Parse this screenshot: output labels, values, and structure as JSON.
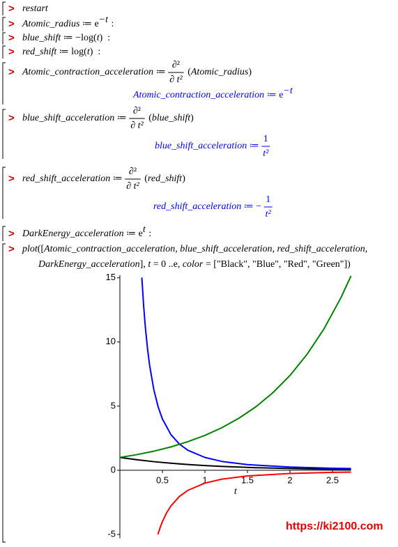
{
  "worksheet": {
    "lines": [
      {
        "prompt": ">",
        "segments": [
          {
            "text": "restart",
            "style": "italic"
          }
        ]
      },
      {
        "prompt": ">",
        "segments": [
          {
            "text": "Atomic_radius",
            "style": "italic"
          },
          {
            "text": " ≔ e"
          },
          {
            "text": "−t",
            "style": "sup"
          },
          {
            "text": " :"
          }
        ]
      },
      {
        "prompt": ">",
        "segments": [
          {
            "text": "blue_shift",
            "style": "italic"
          },
          {
            "text": " ≔ −log("
          },
          {
            "text": "t",
            "style": "italic"
          },
          {
            "text": ")  :"
          }
        ]
      },
      {
        "prompt": ">",
        "segments": [
          {
            "text": "red_shift",
            "style": "italic"
          },
          {
            "text": " ≔ log("
          },
          {
            "text": "t",
            "style": "italic"
          },
          {
            "text": ")  :"
          }
        ]
      },
      {
        "prompt": ">",
        "segments": [
          {
            "text": "Atomic_contraction_acceleration",
            "style": "italic"
          },
          {
            "text": " ≔ "
          },
          {
            "num": "∂²",
            "den": "∂ t²"
          },
          {
            "text": " ("
          },
          {
            "text": "Atomic_radius",
            "style": "italic"
          },
          {
            "text": ")"
          }
        ]
      },
      {
        "color": "#0000ff",
        "segments": [
          {
            "text": "Atomic_contraction_acceleration",
            "style": "italic"
          },
          {
            "text": " ≔ e"
          },
          {
            "text": "−t",
            "style": "sup"
          }
        ]
      },
      {
        "prompt": ">",
        "segments": [
          {
            "text": "blue_shift_acceleration",
            "style": "italic"
          },
          {
            "text": " ≔ "
          },
          {
            "num": "∂²",
            "den": "∂ t²"
          },
          {
            "text": " ("
          },
          {
            "text": "blue_shift",
            "style": "italic"
          },
          {
            "text": ")"
          }
        ]
      },
      {
        "color": "#0000ff",
        "segments": [
          {
            "text": "blue_shift_acceleration",
            "style": "italic"
          },
          {
            "text": " ≔ "
          },
          {
            "num": "1",
            "den": "t²"
          }
        ]
      },
      {
        "prompt": ">",
        "segments": [
          {
            "text": "red_shift_acceleration",
            "style": "italic"
          },
          {
            "text": " ≔ "
          },
          {
            "num": "∂²",
            "den": "∂ t²"
          },
          {
            "text": " ("
          },
          {
            "text": "red_shift",
            "style": "italic"
          },
          {
            "text": ")"
          }
        ]
      },
      {
        "color": "#0000ff",
        "segments": [
          {
            "text": "red_shift_acceleration",
            "style": "italic"
          },
          {
            "text": " ≔ − "
          },
          {
            "num": "1",
            "den": "t²"
          }
        ]
      },
      {
        "prompt": ">",
        "segments": [
          {
            "text": "DarkEnergy_acceleration",
            "style": "italic"
          },
          {
            "text": " ≔ e"
          },
          {
            "text": "t",
            "style": "sup"
          },
          {
            "text": " :"
          }
        ]
      },
      {
        "prompt": ">",
        "segments": [
          {
            "text": "plot",
            "style": "italic"
          },
          {
            "text": "(["
          },
          {
            "text": "Atomic_contraction_acceleration, blue_shift_acceleration, red_shift_acceleration,",
            "style": "italic"
          }
        ]
      },
      {
        "segments": [
          {
            "text": "DarkEnergy_acceleration",
            "style": "italic"
          },
          {
            "text": "], "
          },
          {
            "text": "t",
            "style": "italic"
          },
          {
            "text": " = 0 ..e, "
          },
          {
            "text": "color",
            "style": "italic"
          },
          {
            "text": " = [\"Black\", \"Blue\", \"Red\", \"Green\"])"
          }
        ]
      }
    ]
  },
  "chart_data": {
    "type": "line",
    "x_label": "t",
    "xlim": [
      0,
      2.718
    ],
    "ylim": [
      -5.3,
      15.2
    ],
    "xticks": [
      0.5,
      1,
      1.5,
      2,
      2.5
    ],
    "yticks": [
      -5,
      0,
      5,
      10,
      15
    ],
    "grid": false,
    "series": [
      {
        "color": "#000000",
        "x": [
          0,
          0.2,
          0.4,
          0.6,
          0.8,
          1.0,
          1.2,
          1.4,
          1.6,
          1.8,
          2.0,
          2.2,
          2.4,
          2.6,
          2.718
        ],
        "values": [
          1,
          0.82,
          0.67,
          0.55,
          0.45,
          0.37,
          0.3,
          0.25,
          0.2,
          0.17,
          0.14,
          0.11,
          0.09,
          0.07,
          0.07
        ]
      },
      {
        "color": "#0000ff",
        "x": [
          0.258,
          0.28,
          0.3,
          0.325,
          0.35,
          0.4,
          0.45,
          0.5,
          0.6,
          0.7,
          0.8,
          1,
          1.2,
          1.5,
          2,
          2.5,
          2.718
        ],
        "values": [
          15.02,
          12.76,
          11.11,
          9.47,
          8.16,
          6.25,
          4.94,
          4,
          2.78,
          2.04,
          1.56,
          1,
          0.69,
          0.44,
          0.25,
          0.16,
          0.14
        ]
      },
      {
        "color": "#ff0000",
        "x": [
          0.447,
          0.475,
          0.5,
          0.55,
          0.6,
          0.7,
          0.8,
          1,
          1.2,
          1.5,
          2,
          2.5,
          2.718
        ],
        "values": [
          -5.0,
          -4.43,
          -4,
          -3.31,
          -2.78,
          -2.04,
          -1.56,
          -1,
          -0.69,
          -0.44,
          -0.25,
          -0.16,
          -0.14
        ]
      },
      {
        "color": "#008000",
        "x": [
          0,
          0.2,
          0.4,
          0.6,
          0.8,
          1.0,
          1.2,
          1.4,
          1.6,
          1.8,
          2.0,
          2.2,
          2.4,
          2.6,
          2.718
        ],
        "values": [
          1,
          1.22,
          1.49,
          1.82,
          2.23,
          2.72,
          3.32,
          4.06,
          4.95,
          6.05,
          7.39,
          9.03,
          11.02,
          13.46,
          15.15
        ]
      }
    ]
  },
  "watermark": "https://ki2100.com"
}
